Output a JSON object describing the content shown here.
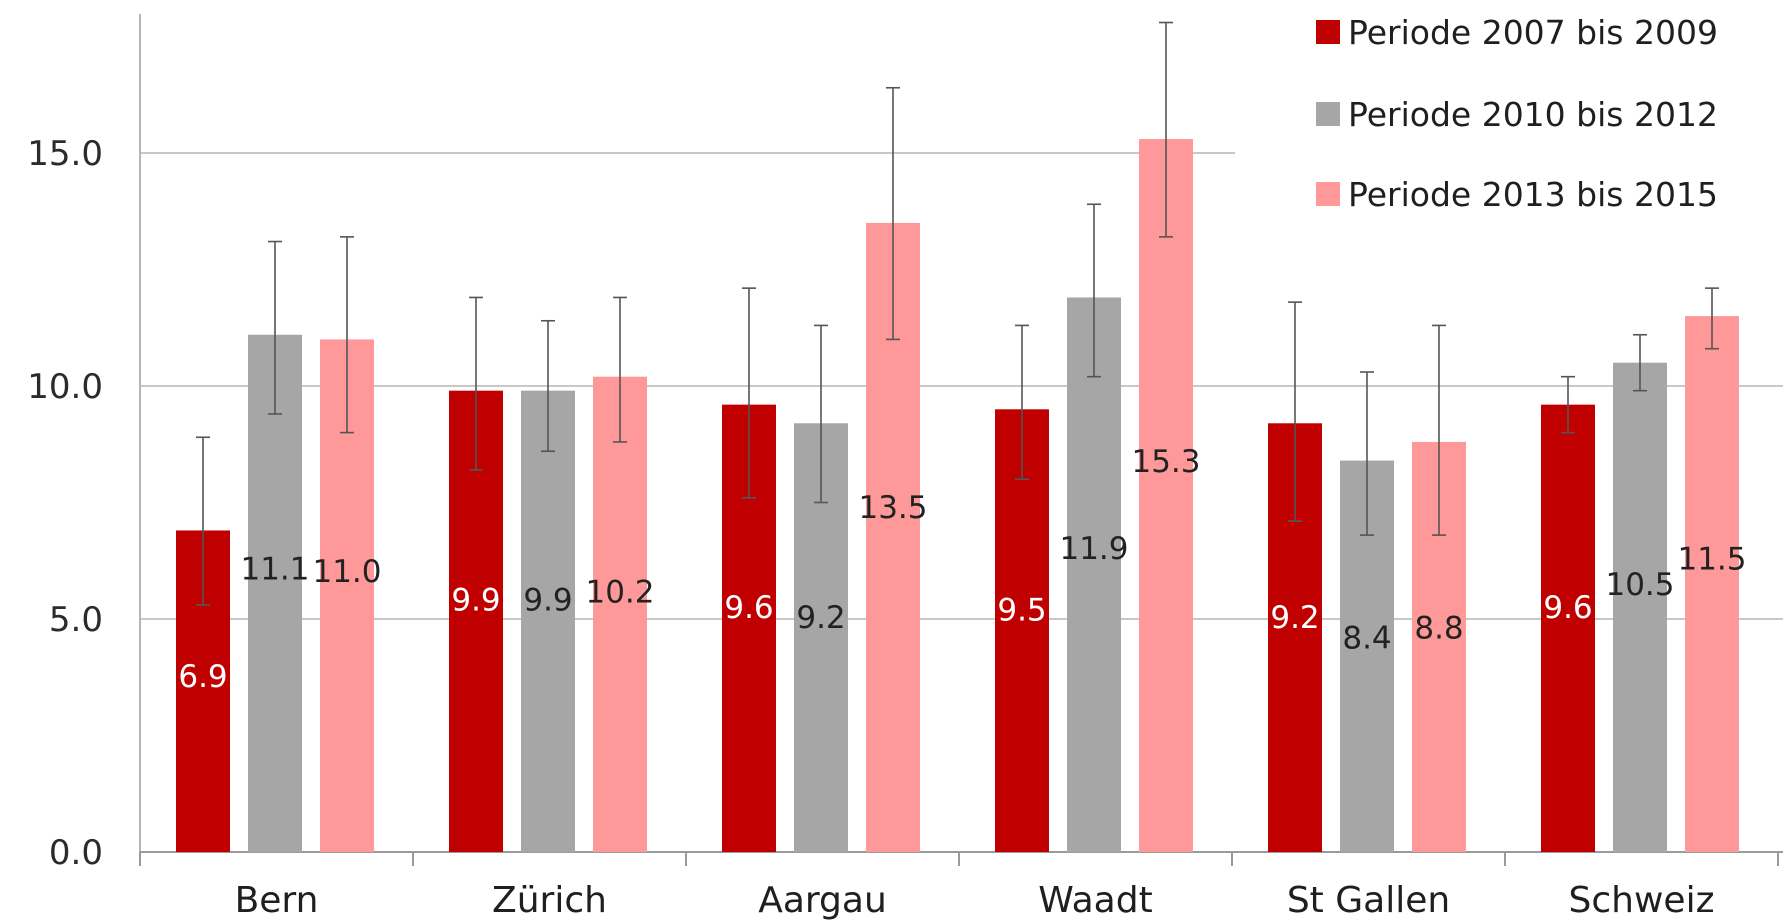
{
  "chart_data": {
    "type": "bar",
    "title": "",
    "xlabel": "",
    "ylabel": "",
    "categories": [
      "Bern",
      "Zürich",
      "Aargau",
      "Waadt",
      "St Gallen",
      "Schweiz"
    ],
    "series": [
      {
        "name": "Periode 2007 bis 2009",
        "color": "#c00000",
        "label_color": "#ffffff",
        "values": [
          6.9,
          9.9,
          9.6,
          9.5,
          9.2,
          9.6
        ],
        "labels": [
          "6.9",
          "9.9",
          "9.6",
          "9.5",
          "9.2",
          "9.6"
        ],
        "error_low": [
          5.3,
          8.2,
          7.6,
          8.0,
          7.1,
          9.0
        ],
        "error_high": [
          8.9,
          11.9,
          12.1,
          11.3,
          11.8,
          10.2
        ]
      },
      {
        "name": "Periode 2010 bis 2012",
        "color": "#a6a6a6",
        "label_color": "#222222",
        "values": [
          11.1,
          9.9,
          9.2,
          11.9,
          8.4,
          10.5
        ],
        "labels": [
          "11.1",
          "9.9",
          "9.2",
          "11.9",
          "8.4",
          "10.5"
        ],
        "error_low": [
          9.4,
          8.6,
          7.5,
          10.2,
          6.8,
          9.9
        ],
        "error_high": [
          13.1,
          11.4,
          11.3,
          13.9,
          10.3,
          11.1
        ]
      },
      {
        "name": "Periode 2013 bis 2015",
        "color": "#ff9999",
        "label_color": "#222222",
        "values": [
          11.0,
          10.2,
          13.5,
          15.3,
          8.8,
          11.5
        ],
        "labels": [
          "11.0",
          "10.2",
          "13.5",
          "15.3",
          "8.8",
          "11.5"
        ],
        "error_low": [
          9.0,
          8.8,
          11.0,
          13.2,
          6.8,
          10.8
        ],
        "error_high": [
          13.2,
          11.9,
          16.4,
          17.8,
          11.3,
          12.1
        ]
      }
    ],
    "yticks": [
      "0.0",
      "5.0",
      "10.0",
      "15.0"
    ],
    "ylim": [
      0,
      18
    ],
    "grid": true,
    "legend_position": "top-right",
    "error_bars": true
  }
}
